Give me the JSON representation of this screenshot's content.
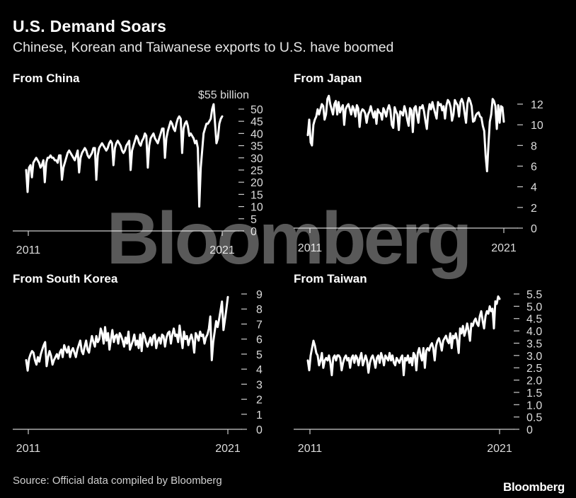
{
  "title": "U.S. Demand Soars",
  "subtitle": "Chinese, Korean and Taiwanese exports to U.S. have boomed",
  "source": "Source: Official data compiled by Bloomberg",
  "brand": "Bloomberg",
  "watermark": "Bloomberg",
  "colors": {
    "background": "#000000",
    "line": "#ffffff",
    "axis": "#cccccc"
  },
  "chart_data": [
    {
      "type": "line",
      "title": "From China",
      "unit_label": "$55 billion",
      "x_tick_labels": [
        "2011",
        "2021"
      ],
      "xlim": [
        2011,
        2021
      ],
      "ylim": [
        0,
        55
      ],
      "y_ticks": [
        0,
        5,
        10,
        15,
        20,
        25,
        30,
        35,
        40,
        45,
        50
      ],
      "series": [
        {
          "values": [
            25,
            16,
            26,
            27,
            22,
            28,
            29,
            30,
            29,
            28,
            26,
            27,
            29,
            20,
            28,
            30,
            30,
            31,
            30,
            30,
            29,
            29,
            28,
            31,
            31,
            21,
            26,
            28,
            30,
            32,
            33,
            32,
            31,
            30,
            29,
            31,
            33,
            24,
            30,
            32,
            33,
            34,
            33,
            31,
            30,
            31,
            32,
            34,
            34,
            21,
            31,
            34,
            35,
            36,
            35,
            34,
            33,
            34,
            36,
            37,
            36,
            27,
            34,
            36,
            37,
            36,
            35,
            33,
            32,
            33,
            35,
            36,
            37,
            25,
            33,
            35,
            37,
            39,
            38,
            36,
            35,
            37,
            38,
            40,
            39,
            26,
            35,
            38,
            39,
            40,
            38,
            37,
            36,
            38,
            40,
            42,
            42,
            30,
            38,
            41,
            43,
            45,
            44,
            42,
            41,
            44,
            46,
            47,
            46,
            32,
            42,
            44,
            45,
            43,
            39,
            40,
            39,
            38,
            36,
            37,
            34,
            10,
            26,
            33,
            40,
            42,
            44,
            44,
            45,
            46,
            50,
            52,
            44,
            36,
            38,
            44,
            46,
            47
          ]
        }
      ]
    },
    {
      "type": "line",
      "title": "From Japan",
      "x_tick_labels": [
        "2011",
        "2021"
      ],
      "xlim": [
        2011,
        2021
      ],
      "ylim": [
        0,
        13
      ],
      "y_ticks": [
        0,
        2,
        4,
        6,
        8,
        10,
        12
      ],
      "series": [
        {
          "values": [
            9,
            10.5,
            8.3,
            8,
            10,
            10.5,
            10.8,
            11.5,
            11,
            11.5,
            12,
            11.8,
            10.5,
            11,
            12.5,
            12.8,
            12,
            11.5,
            11,
            12,
            12.3,
            11,
            12.2,
            11.2,
            11.6,
            11.9,
            10,
            11.5,
            11.8,
            12,
            11.5,
            11,
            11.8,
            11.5,
            10.8,
            11.9,
            11.6,
            9.8,
            11.2,
            11.5,
            11.4,
            11.1,
            10.2,
            11,
            11.3,
            11.8,
            11.2,
            10.7,
            11.3,
            10.1,
            11.5,
            11.2,
            11.1,
            10.5,
            11.6,
            11.3,
            10.8,
            11.5,
            11.9,
            11.4,
            10,
            9.7,
            11.7,
            11.3,
            11,
            9.5,
            11.3,
            11.2,
            10.9,
            11.8,
            11.3,
            10.5,
            9.9,
            11.6,
            11.4,
            9.3,
            11.6,
            11.8,
            11,
            10.2,
            11.7,
            11.6,
            11.9,
            11.3,
            10.4,
            9.6,
            11.2,
            12,
            11.5,
            12.2,
            11.6,
            11.1,
            10.6,
            12.2,
            11.9,
            12,
            11.4,
            11.8,
            10.6,
            11.9,
            12.4,
            12.2,
            11.7,
            10.4,
            11,
            12.4,
            12.1,
            11.9,
            10.8,
            12.2,
            12.5,
            12.1,
            11.1,
            10.2,
            12.1,
            12.6,
            12.3,
            11.8,
            10.3,
            10.4,
            10.9,
            11.1,
            11.2,
            10.8,
            10.7,
            9.9,
            9.4,
            7,
            5.5,
            8,
            10.3,
            11,
            12.5,
            12.3,
            11.8,
            9.6,
            11.9,
            10.2,
            11.8,
            11.7,
            10.3
          ]
        }
      ]
    },
    {
      "type": "line",
      "title": "From South Korea",
      "x_tick_labels": [
        "2011",
        "2021"
      ],
      "xlim": [
        2011,
        2021
      ],
      "ylim": [
        0,
        9
      ],
      "y_ticks": [
        0,
        1,
        2,
        3,
        4,
        5,
        6,
        7,
        8,
        9
      ],
      "series": [
        {
          "values": [
            4.6,
            3.9,
            4.7,
            5,
            5.2,
            5.1,
            4.6,
            4.3,
            4.8,
            4.5,
            5,
            5.3,
            5.6,
            5.8,
            4.2,
            4.8,
            5.2,
            4.9,
            4.3,
            4.6,
            4.8,
            5,
            4.7,
            5.1,
            5.3,
            4.8,
            5.6,
            5.3,
            5.1,
            5.5,
            4.8,
            5.2,
            5.4,
            5.1,
            4.8,
            5.3,
            5.6,
            5.9,
            5.2,
            5,
            5.5,
            5.9,
            5.3,
            5.1,
            5.7,
            6.2,
            5.8,
            5.5,
            6.2,
            5.8,
            6,
            6.7,
            6.4,
            5.7,
            6.8,
            5.9,
            6.4,
            5.3,
            6,
            6.6,
            5.8,
            6.2,
            6.3,
            5.7,
            6.4,
            6.2,
            5.9,
            5.5,
            6.1,
            5.7,
            6.5,
            5.3,
            5.6,
            5.9,
            6.3,
            5.6,
            5.9,
            5.4,
            6.3,
            5.2,
            6.4,
            6.2,
            5.8,
            5.5,
            5.8,
            6.1,
            5.6,
            6.2,
            6.3,
            5.4,
            5.9,
            6.1,
            5.7,
            6.3,
            6.2,
            5.5,
            6.1,
            6.4,
            6.5,
            5.7,
            6.3,
            6.7,
            6.2,
            6.3,
            5.8,
            6.9,
            6.1,
            5.4,
            6.5,
            6,
            6.2,
            5.6,
            6,
            6.3,
            5.9,
            5.1,
            6.4,
            6.2,
            5.9,
            6.5,
            6.2,
            6.3,
            5.7,
            6.1,
            6.3,
            6.7,
            7.5,
            4.6,
            5.8,
            6.5,
            7.2,
            6.8,
            7.3,
            7.9,
            8.5,
            6.6,
            7.3,
            8,
            8.8
          ]
        }
      ]
    },
    {
      "type": "line",
      "title": "From Taiwan",
      "x_tick_labels": [
        "2011",
        "2021"
      ],
      "xlim": [
        2011,
        2021
      ],
      "ylim": [
        0,
        5.5
      ],
      "y_ticks": [
        0,
        0.5,
        1.0,
        1.5,
        2.0,
        2.5,
        3.0,
        3.5,
        4.0,
        4.5,
        5.0,
        5.5
      ],
      "y_tick_labels": [
        "0",
        "0.5",
        "1.0",
        "1.5",
        "2.0",
        "2.5",
        "3.0",
        "3.5",
        "4.0",
        "4.5",
        "5.0",
        "5.5"
      ],
      "series": [
        {
          "values": [
            2.8,
            2.4,
            3,
            3.3,
            3.6,
            3.4,
            3.1,
            3,
            2.6,
            2.8,
            3.1,
            2.5,
            2.8,
            2.9,
            2.8,
            3,
            2.7,
            2.2,
            2.9,
            3,
            2.8,
            3,
            3,
            2.9,
            2.4,
            2.7,
            2.9,
            3,
            2.8,
            2.9,
            2.5,
            2.9,
            3,
            2.7,
            3,
            2.9,
            2.6,
            2.9,
            3.1,
            2.6,
            2.8,
            3,
            2.8,
            2.3,
            2.7,
            2.9,
            3,
            2.8,
            2.5,
            2.9,
            3,
            2.7,
            3.1,
            2.9,
            2.6,
            3,
            2.9,
            2.8,
            3.1,
            2.8,
            3,
            2.7,
            2.6,
            2.9,
            2.8,
            2.7,
            2.9,
            3,
            2.2,
            2.9,
            2.8,
            3,
            2.7,
            2.9,
            2.6,
            3.1,
            3,
            2.4,
            3.1,
            3.3,
            3,
            2.8,
            3.3,
            2.5,
            3.2,
            3.3,
            3.2,
            3.4,
            3.5,
            3.3,
            2.8,
            3.4,
            3.6,
            3.7,
            3.5,
            3.2,
            3.6,
            3.7,
            3.8,
            3.6,
            3.5,
            3.9,
            3.3,
            3.8,
            3.7,
            3.9,
            3.6,
            3.1,
            4.1,
            3.9,
            4.2,
            3.8,
            4,
            4.3,
            4,
            3.6,
            4.3,
            4.2,
            4.4,
            4.5,
            4.3,
            4.2,
            4.6,
            4.8,
            4.4,
            4.1,
            4.6,
            4.8,
            4.7,
            5,
            4.8,
            4.9,
            4.1,
            5.2,
            5.1,
            5.4,
            5.3
          ]
        }
      ]
    }
  ]
}
